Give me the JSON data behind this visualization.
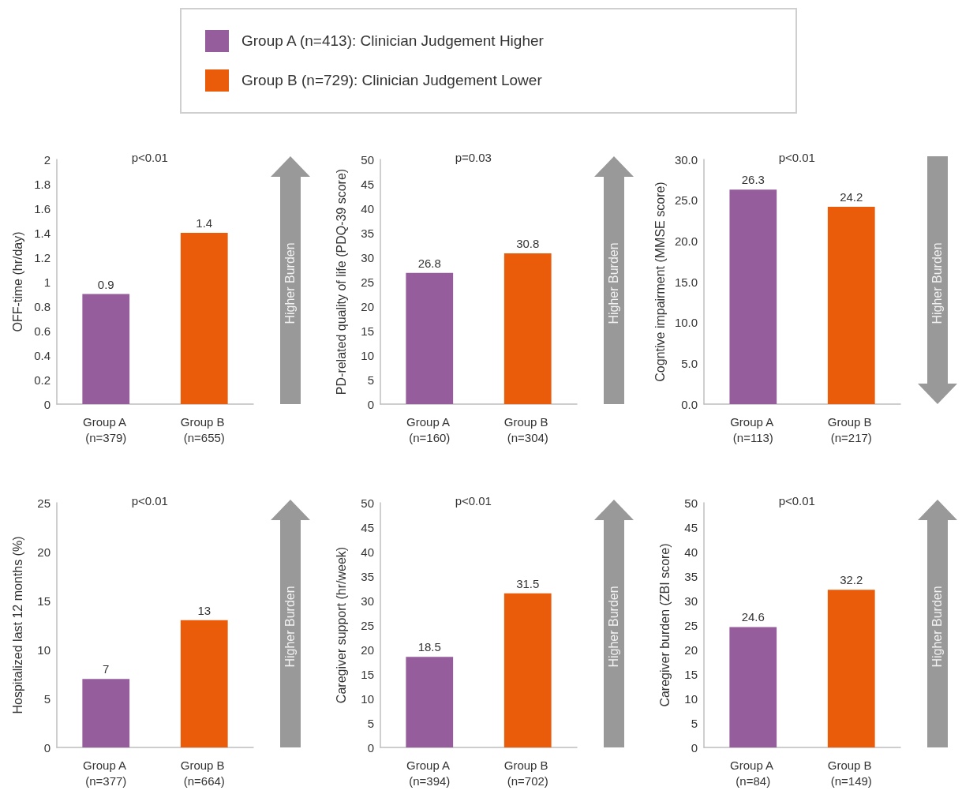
{
  "chart_data": [
    {
      "type": "bar",
      "ylabel": "OFF-time (hr/day)",
      "categories": [
        "Group A (n=379)",
        "Group B (n=655)"
      ],
      "stacked": true,
      "legend": "top",
      "series": [
        {
          "name": "Group A (n=413): Clinician Judgement Higher",
          "color": "#955d9c",
          "values": [
            0.9,
            null
          ]
        },
        {
          "name": "Group B (n=729): Clinician Judgement Lower",
          "color": "#ea5c0a",
          "values": [
            null,
            1.4
          ]
        }
      ],
      "ylim": [
        0,
        2
      ],
      "yticks": [
        0,
        0.2,
        0.4,
        0.6,
        0.8,
        1,
        1.2,
        1.4,
        1.6,
        1.8,
        2
      ],
      "grid": false,
      "data_labels": true,
      "annotations": [
        "p<0.01",
        "Higher Burden"
      ]
    },
    {
      "type": "bar",
      "ylabel": "PD-related quality of life (PDQ-39 score)",
      "categories": [
        "Group A (n=160)",
        "Group B (n=304)"
      ],
      "values": [
        26.8,
        30.8
      ],
      "colors": [
        "#955d9c",
        "#ea5c0a"
      ],
      "ylim": [
        0,
        50
      ],
      "yticks": [
        0,
        5,
        10,
        15,
        20,
        25,
        30,
        35,
        40,
        45,
        50
      ],
      "grid": false,
      "data_labels": true,
      "annotations": [
        "p=0.03",
        "Higher Burden"
      ]
    },
    {
      "type": "bar",
      "ylabel": "Cogntive impairment (MMSE score)",
      "categories": [
        "Group A (n=113)",
        "Group B (n=217)"
      ],
      "values": [
        26.3,
        24.2
      ],
      "colors": [
        "#955d9c",
        "#ea5c0a"
      ],
      "ylim": [
        0,
        30
      ],
      "yticks": [
        {
          "value": 0,
          "label": "0.0"
        },
        {
          "value": 5,
          "label": "5.0"
        },
        {
          "value": 10,
          "label": "10.0"
        },
        {
          "value": 15,
          "label": "15.0"
        },
        {
          "value": 20,
          "label": "20.0"
        },
        {
          "value": 25,
          "label": "25.0"
        },
        {
          "value": 30,
          "label": "30.0"
        }
      ],
      "grid": false,
      "data_labels": true,
      "annotations": [
        "p<0.01",
        "Higher Burden"
      ]
    },
    {
      "type": "bar",
      "ylabel": "Hospitalized last 12 months (%)",
      "categories": [
        "Group A (n=377)",
        "Group B (n=664)"
      ],
      "values": [
        7,
        13
      ],
      "colors": [
        "#955d9c",
        "#ea5c0a"
      ],
      "ylim": [
        0,
        25
      ],
      "yticks": [
        0,
        5,
        10,
        15,
        20,
        25
      ],
      "grid": false,
      "data_labels": true,
      "annotations": [
        "p<0.01",
        "Higher Burden"
      ]
    },
    {
      "type": "bar",
      "ylabel": "Caregiver support (hr/week)",
      "categories": [
        "Group A (n=394)",
        "Group B (n=702)"
      ],
      "values": [
        18.5,
        31.5
      ],
      "colors": [
        "#955d9c",
        "#ea5c0a"
      ],
      "ylim": [
        0,
        50
      ],
      "yticks": [
        0,
        5,
        10,
        15,
        20,
        25,
        30,
        35,
        40,
        45,
        50
      ],
      "grid": false,
      "data_labels": true,
      "annotations": [
        "p<0.01",
        "Higher Burden"
      ]
    },
    {
      "type": "bar",
      "ylabel": "Caregiver burden (ZBI score)",
      "categories": [
        "Group A (n=84)",
        "Group B (n=149)"
      ],
      "values": [
        24.6,
        32.2
      ],
      "colors": [
        "#955d9c",
        "#ea5c0a"
      ],
      "ylim": [
        0,
        50
      ],
      "yticks": [
        0,
        5,
        10,
        15,
        20,
        25,
        30,
        35,
        40,
        45,
        50
      ],
      "grid": false,
      "data_labels": true,
      "annotations": [
        "p<0.01",
        "Higher Burden"
      ]
    }
  ]
}
